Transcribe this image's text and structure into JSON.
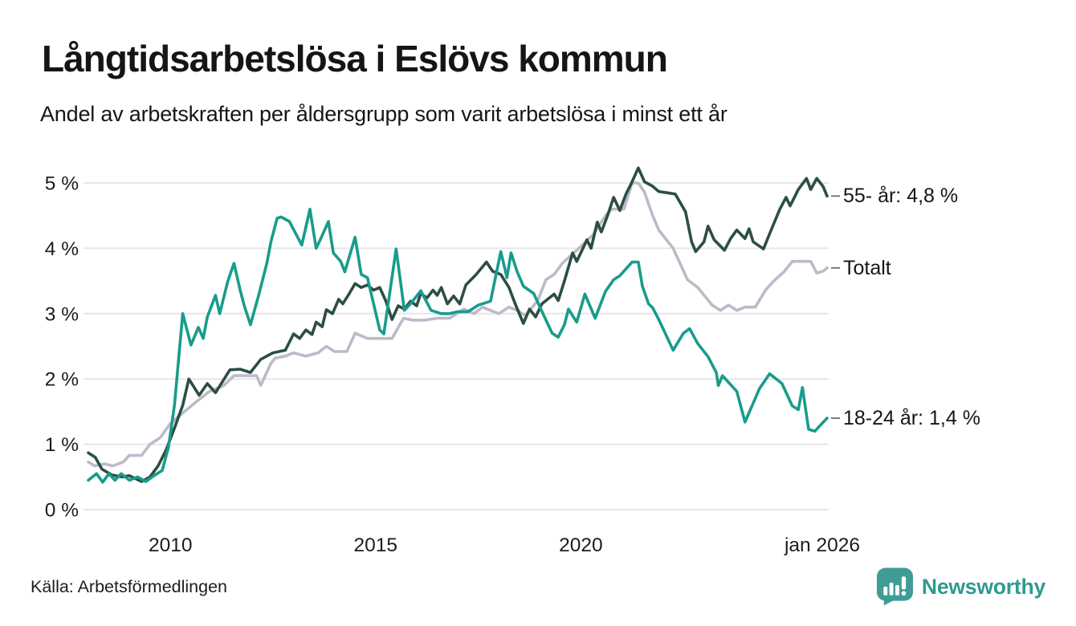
{
  "header": {
    "title": "Långtidsarbetslösa i Eslövs kommun",
    "subtitle": "Andel av arbetskraften per åldersgrupp som varit arbetslösa i minst ett år"
  },
  "footer": {
    "source": "Källa: Arbetsförmedlingen",
    "brand": "Newsworthy"
  },
  "colors": {
    "series_55": "#2c4e43",
    "series_total": "#bdbac9",
    "series_18_24": "#189c8b",
    "gridline": "#e7e6eb",
    "axis_text": "#1c1c1c",
    "label_dash": "#6e6e6e",
    "brand_teal": "#2f9a91",
    "logo_bubble": "#3f9d96"
  },
  "chart_data": {
    "type": "line",
    "title": "Långtidsarbetslösa i Eslövs kommun",
    "subtitle": "Andel av arbetskraften per åldersgrupp som varit arbetslösa i minst ett år",
    "unit": "%",
    "grid": true,
    "legend_position": "right-end-labels",
    "x_axis": {
      "range": [
        2008,
        2026.08
      ],
      "ticks": [
        {
          "t": 2010,
          "label": "2010"
        },
        {
          "t": 2015,
          "label": "2015"
        },
        {
          "t": 2020,
          "label": "2020"
        },
        {
          "t": 2026,
          "label": "jan 2026"
        }
      ]
    },
    "y_axis": {
      "range": [
        0,
        5.3
      ],
      "ticks": [
        {
          "v": 5,
          "label": "5 %"
        },
        {
          "v": 4,
          "label": "4 %"
        },
        {
          "v": 3,
          "label": "3 %"
        },
        {
          "v": 2,
          "label": "2 %"
        },
        {
          "v": 1,
          "label": "1 %"
        },
        {
          "v": 0,
          "label": "0 %"
        }
      ]
    },
    "series": [
      {
        "name": "55- år",
        "label": "55- år: 4,8 %",
        "end_value": 4.8,
        "color": "#2c4e43",
        "points": [
          [
            2008.0,
            0.87
          ],
          [
            2008.17,
            0.8
          ],
          [
            2008.33,
            0.62
          ],
          [
            2008.58,
            0.53
          ],
          [
            2008.83,
            0.5
          ],
          [
            2009.0,
            0.52
          ],
          [
            2009.3,
            0.43
          ],
          [
            2009.5,
            0.5
          ],
          [
            2009.7,
            0.67
          ],
          [
            2009.9,
            0.92
          ],
          [
            2010.1,
            1.25
          ],
          [
            2010.3,
            1.6
          ],
          [
            2010.45,
            2.0
          ],
          [
            2010.7,
            1.75
          ],
          [
            2010.9,
            1.93
          ],
          [
            2011.1,
            1.79
          ],
          [
            2011.45,
            2.14
          ],
          [
            2011.7,
            2.15
          ],
          [
            2011.95,
            2.1
          ],
          [
            2012.2,
            2.3
          ],
          [
            2012.5,
            2.4
          ],
          [
            2012.8,
            2.44
          ],
          [
            2013.0,
            2.69
          ],
          [
            2013.15,
            2.62
          ],
          [
            2013.3,
            2.75
          ],
          [
            2013.45,
            2.68
          ],
          [
            2013.55,
            2.87
          ],
          [
            2013.7,
            2.8
          ],
          [
            2013.8,
            3.06
          ],
          [
            2013.95,
            3.0
          ],
          [
            2014.1,
            3.22
          ],
          [
            2014.2,
            3.15
          ],
          [
            2014.35,
            3.3
          ],
          [
            2014.5,
            3.46
          ],
          [
            2014.65,
            3.4
          ],
          [
            2014.8,
            3.44
          ],
          [
            2014.95,
            3.36
          ],
          [
            2015.1,
            3.4
          ],
          [
            2015.25,
            3.19
          ],
          [
            2015.4,
            2.91
          ],
          [
            2015.55,
            3.12
          ],
          [
            2015.7,
            3.07
          ],
          [
            2015.85,
            3.19
          ],
          [
            2016.0,
            3.12
          ],
          [
            2016.1,
            3.31
          ],
          [
            2016.25,
            3.24
          ],
          [
            2016.4,
            3.36
          ],
          [
            2016.5,
            3.28
          ],
          [
            2016.6,
            3.4
          ],
          [
            2016.75,
            3.15
          ],
          [
            2016.9,
            3.27
          ],
          [
            2017.05,
            3.15
          ],
          [
            2017.2,
            3.44
          ],
          [
            2017.45,
            3.6
          ],
          [
            2017.7,
            3.79
          ],
          [
            2017.85,
            3.65
          ],
          [
            2018.05,
            3.6
          ],
          [
            2018.25,
            3.4
          ],
          [
            2018.4,
            3.15
          ],
          [
            2018.6,
            2.85
          ],
          [
            2018.75,
            3.07
          ],
          [
            2018.9,
            2.95
          ],
          [
            2019.05,
            3.15
          ],
          [
            2019.35,
            3.3
          ],
          [
            2019.45,
            3.2
          ],
          [
            2019.6,
            3.5
          ],
          [
            2019.8,
            3.93
          ],
          [
            2019.9,
            3.8
          ],
          [
            2020.15,
            4.13
          ],
          [
            2020.25,
            4.0
          ],
          [
            2020.4,
            4.4
          ],
          [
            2020.5,
            4.25
          ],
          [
            2020.65,
            4.5
          ],
          [
            2020.8,
            4.78
          ],
          [
            2020.95,
            4.58
          ],
          [
            2021.1,
            4.83
          ],
          [
            2021.25,
            5.02
          ],
          [
            2021.4,
            5.23
          ],
          [
            2021.55,
            5.02
          ],
          [
            2021.75,
            4.95
          ],
          [
            2021.9,
            4.87
          ],
          [
            2022.1,
            4.85
          ],
          [
            2022.3,
            4.83
          ],
          [
            2022.55,
            4.56
          ],
          [
            2022.7,
            4.1
          ],
          [
            2022.8,
            3.95
          ],
          [
            2023.0,
            4.1
          ],
          [
            2023.1,
            4.34
          ],
          [
            2023.25,
            4.13
          ],
          [
            2023.5,
            3.97
          ],
          [
            2023.65,
            4.15
          ],
          [
            2023.8,
            4.28
          ],
          [
            2024.0,
            4.15
          ],
          [
            2024.1,
            4.3
          ],
          [
            2024.2,
            4.1
          ],
          [
            2024.45,
            3.99
          ],
          [
            2024.65,
            4.3
          ],
          [
            2024.85,
            4.6
          ],
          [
            2025.0,
            4.78
          ],
          [
            2025.1,
            4.65
          ],
          [
            2025.3,
            4.9
          ],
          [
            2025.5,
            5.07
          ],
          [
            2025.6,
            4.9
          ],
          [
            2025.75,
            5.07
          ],
          [
            2025.9,
            4.95
          ],
          [
            2026.0,
            4.8
          ]
        ]
      },
      {
        "name": "Totalt",
        "label": "Totalt",
        "end_value": 3.7,
        "color": "#bdbac9",
        "points": [
          [
            2008.0,
            0.73
          ],
          [
            2008.15,
            0.67
          ],
          [
            2008.4,
            0.7
          ],
          [
            2008.6,
            0.67
          ],
          [
            2008.85,
            0.73
          ],
          [
            2009.0,
            0.83
          ],
          [
            2009.3,
            0.83
          ],
          [
            2009.5,
            1.0
          ],
          [
            2009.75,
            1.1
          ],
          [
            2010.0,
            1.32
          ],
          [
            2010.3,
            1.48
          ],
          [
            2010.65,
            1.66
          ],
          [
            2010.95,
            1.81
          ],
          [
            2011.3,
            1.9
          ],
          [
            2011.55,
            2.05
          ],
          [
            2011.8,
            2.05
          ],
          [
            2012.1,
            2.05
          ],
          [
            2012.2,
            1.9
          ],
          [
            2012.45,
            2.24
          ],
          [
            2012.55,
            2.32
          ],
          [
            2012.8,
            2.35
          ],
          [
            2013.0,
            2.4
          ],
          [
            2013.3,
            2.35
          ],
          [
            2013.6,
            2.4
          ],
          [
            2013.8,
            2.5
          ],
          [
            2014.0,
            2.42
          ],
          [
            2014.3,
            2.42
          ],
          [
            2014.5,
            2.7
          ],
          [
            2014.8,
            2.62
          ],
          [
            2015.1,
            2.62
          ],
          [
            2015.4,
            2.62
          ],
          [
            2015.68,
            2.93
          ],
          [
            2015.9,
            2.9
          ],
          [
            2016.2,
            2.9
          ],
          [
            2016.5,
            2.93
          ],
          [
            2016.8,
            2.93
          ],
          [
            2017.15,
            3.07
          ],
          [
            2017.4,
            3.0
          ],
          [
            2017.6,
            3.1
          ],
          [
            2018.0,
            3.0
          ],
          [
            2018.25,
            3.1
          ],
          [
            2018.45,
            3.05
          ],
          [
            2018.65,
            2.97
          ],
          [
            2018.95,
            3.2
          ],
          [
            2019.15,
            3.52
          ],
          [
            2019.35,
            3.6
          ],
          [
            2019.55,
            3.77
          ],
          [
            2019.95,
            4.0
          ],
          [
            2020.3,
            4.21
          ],
          [
            2020.6,
            4.5
          ],
          [
            2020.75,
            4.6
          ],
          [
            2021.05,
            4.6
          ],
          [
            2021.25,
            5.0
          ],
          [
            2021.4,
            5.0
          ],
          [
            2021.55,
            4.86
          ],
          [
            2021.75,
            4.5
          ],
          [
            2021.9,
            4.28
          ],
          [
            2022.25,
            4.0
          ],
          [
            2022.6,
            3.52
          ],
          [
            2022.85,
            3.4
          ],
          [
            2023.2,
            3.13
          ],
          [
            2023.4,
            3.05
          ],
          [
            2023.6,
            3.13
          ],
          [
            2023.8,
            3.05
          ],
          [
            2024.0,
            3.1
          ],
          [
            2024.25,
            3.1
          ],
          [
            2024.5,
            3.36
          ],
          [
            2024.7,
            3.5
          ],
          [
            2024.95,
            3.64
          ],
          [
            2025.15,
            3.8
          ],
          [
            2025.45,
            3.8
          ],
          [
            2025.6,
            3.8
          ],
          [
            2025.75,
            3.62
          ],
          [
            2025.9,
            3.65
          ],
          [
            2026.0,
            3.7
          ]
        ]
      },
      {
        "name": "18-24 år",
        "label": "18-24 år: 1,4 %",
        "end_value": 1.4,
        "color": "#189c8b",
        "points": [
          [
            2008.0,
            0.45
          ],
          [
            2008.2,
            0.55
          ],
          [
            2008.35,
            0.42
          ],
          [
            2008.5,
            0.55
          ],
          [
            2008.65,
            0.45
          ],
          [
            2008.8,
            0.55
          ],
          [
            2009.0,
            0.45
          ],
          [
            2009.2,
            0.5
          ],
          [
            2009.4,
            0.43
          ],
          [
            2009.6,
            0.52
          ],
          [
            2009.8,
            0.6
          ],
          [
            2009.95,
            0.95
          ],
          [
            2010.1,
            1.6
          ],
          [
            2010.2,
            2.3
          ],
          [
            2010.3,
            3.0
          ],
          [
            2010.5,
            2.52
          ],
          [
            2010.68,
            2.79
          ],
          [
            2010.8,
            2.62
          ],
          [
            2010.9,
            2.95
          ],
          [
            2011.1,
            3.28
          ],
          [
            2011.2,
            3.0
          ],
          [
            2011.4,
            3.5
          ],
          [
            2011.55,
            3.77
          ],
          [
            2011.7,
            3.36
          ],
          [
            2011.8,
            3.12
          ],
          [
            2011.95,
            2.83
          ],
          [
            2012.15,
            3.28
          ],
          [
            2012.35,
            3.77
          ],
          [
            2012.45,
            4.1
          ],
          [
            2012.6,
            4.46
          ],
          [
            2012.7,
            4.48
          ],
          [
            2012.9,
            4.41
          ],
          [
            2013.2,
            4.05
          ],
          [
            2013.4,
            4.6
          ],
          [
            2013.55,
            4.0
          ],
          [
            2013.65,
            4.13
          ],
          [
            2013.85,
            4.41
          ],
          [
            2013.97,
            3.93
          ],
          [
            2014.15,
            3.8
          ],
          [
            2014.25,
            3.64
          ],
          [
            2014.5,
            4.17
          ],
          [
            2014.65,
            3.6
          ],
          [
            2014.8,
            3.55
          ],
          [
            2015.1,
            2.75
          ],
          [
            2015.2,
            2.69
          ],
          [
            2015.5,
            3.99
          ],
          [
            2015.7,
            3.05
          ],
          [
            2015.85,
            3.15
          ],
          [
            2016.1,
            3.35
          ],
          [
            2016.35,
            3.05
          ],
          [
            2016.6,
            3.0
          ],
          [
            2016.8,
            3.0
          ],
          [
            2017.0,
            3.03
          ],
          [
            2017.25,
            3.03
          ],
          [
            2017.5,
            3.13
          ],
          [
            2017.8,
            3.19
          ],
          [
            2018.05,
            3.95
          ],
          [
            2018.2,
            3.55
          ],
          [
            2018.3,
            3.93
          ],
          [
            2018.45,
            3.64
          ],
          [
            2018.6,
            3.42
          ],
          [
            2018.85,
            3.31
          ],
          [
            2019.1,
            2.97
          ],
          [
            2019.3,
            2.7
          ],
          [
            2019.45,
            2.64
          ],
          [
            2019.6,
            2.83
          ],
          [
            2019.7,
            3.07
          ],
          [
            2019.9,
            2.87
          ],
          [
            2020.1,
            3.3
          ],
          [
            2020.35,
            2.93
          ],
          [
            2020.6,
            3.34
          ],
          [
            2020.8,
            3.52
          ],
          [
            2020.95,
            3.58
          ],
          [
            2021.25,
            3.79
          ],
          [
            2021.4,
            3.79
          ],
          [
            2021.5,
            3.42
          ],
          [
            2021.65,
            3.15
          ],
          [
            2021.75,
            3.09
          ],
          [
            2021.9,
            2.91
          ],
          [
            2022.25,
            2.44
          ],
          [
            2022.5,
            2.7
          ],
          [
            2022.65,
            2.77
          ],
          [
            2022.85,
            2.54
          ],
          [
            2023.1,
            2.34
          ],
          [
            2023.3,
            2.1
          ],
          [
            2023.35,
            1.9
          ],
          [
            2023.45,
            2.05
          ],
          [
            2023.8,
            1.81
          ],
          [
            2024.0,
            1.34
          ],
          [
            2024.2,
            1.63
          ],
          [
            2024.35,
            1.85
          ],
          [
            2024.6,
            2.08
          ],
          [
            2024.9,
            1.93
          ],
          [
            2025.15,
            1.59
          ],
          [
            2025.3,
            1.53
          ],
          [
            2025.4,
            1.87
          ],
          [
            2025.55,
            1.23
          ],
          [
            2025.7,
            1.2
          ],
          [
            2025.85,
            1.3
          ],
          [
            2026.0,
            1.4
          ]
        ]
      }
    ]
  }
}
